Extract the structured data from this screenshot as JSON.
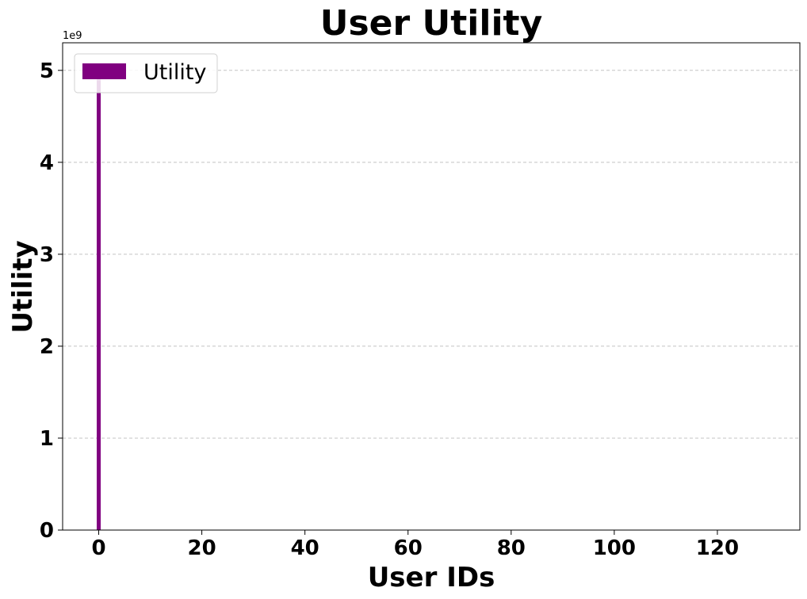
{
  "chart_data": {
    "type": "bar",
    "title": "User Utility",
    "xlabel": "User IDs",
    "ylabel": "Utility",
    "y_offset_label": "1e9",
    "x": [
      0
    ],
    "values": [
      4900000000
    ],
    "series": [
      {
        "name": "Utility",
        "x": [
          0
        ],
        "values": [
          4900000000
        ]
      }
    ],
    "xlim": [
      -7,
      136
    ],
    "ylim": [
      0,
      5300000000
    ],
    "xticks": [
      0,
      20,
      40,
      60,
      80,
      100,
      120
    ],
    "xtick_labels": [
      "0",
      "20",
      "40",
      "60",
      "80",
      "100",
      "120"
    ],
    "yticks": [
      0,
      1000000000,
      2000000000,
      3000000000,
      4000000000,
      5000000000
    ],
    "ytick_labels": [
      "0",
      "1",
      "2",
      "3",
      "4",
      "5"
    ],
    "grid": "y-dashed",
    "legend": {
      "position": "top-left",
      "entries": [
        "Utility"
      ]
    },
    "colors": {
      "bar": "#800080",
      "grid": "#c4c4c4",
      "axis": "#000000"
    }
  }
}
